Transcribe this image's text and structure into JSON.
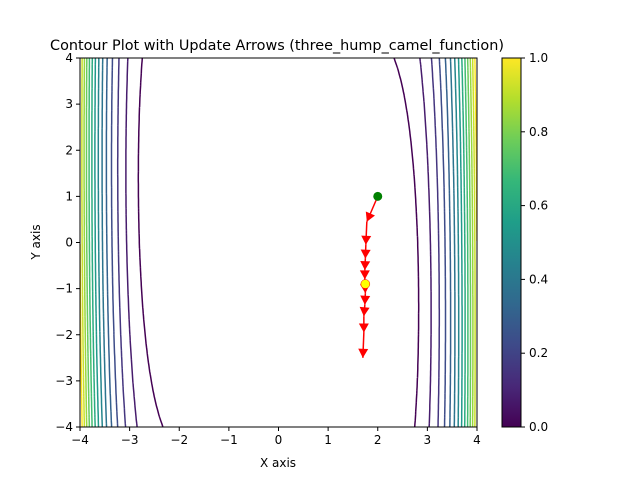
{
  "chart_data": {
    "type": "contour",
    "title": "Contour Plot with Update Arrows (three_hump_camel_function)",
    "xlabel": "X axis",
    "ylabel": "Y axis",
    "xlim": [
      -4,
      4
    ],
    "ylim": [
      -4,
      4
    ],
    "x_ticks": [
      "−4",
      "−3",
      "−2",
      "−1",
      "0",
      "1",
      "2",
      "3",
      "4"
    ],
    "y_ticks": [
      "−4",
      "−3",
      "−2",
      "−1",
      "0",
      "1",
      "2",
      "3",
      "4"
    ],
    "colormap": "viridis",
    "colorbar": {
      "range": [
        0,
        1
      ],
      "ticks": [
        "0.0",
        "0.2",
        "0.4",
        "0.6",
        "0.8",
        "1.0"
      ]
    },
    "contour_levels_count": 15,
    "start_point": {
      "x": 2.0,
      "y": 1.0,
      "color": "#008000"
    },
    "end_point": {
      "x": 1.75,
      "y": -0.9,
      "color": "#ffff00"
    },
    "update_path": {
      "color": "#ff0000",
      "points": [
        {
          "x": 2.0,
          "y": 1.0
        },
        {
          "x": 1.78,
          "y": 0.45
        },
        {
          "x": 1.76,
          "y": -0.05
        },
        {
          "x": 1.75,
          "y": -0.35
        },
        {
          "x": 1.74,
          "y": -0.6
        },
        {
          "x": 1.74,
          "y": -0.8
        },
        {
          "x": 1.75,
          "y": -1.1
        },
        {
          "x": 1.74,
          "y": -1.35
        },
        {
          "x": 1.72,
          "y": -1.6
        },
        {
          "x": 1.72,
          "y": -1.95
        },
        {
          "x": 1.7,
          "y": -2.5
        }
      ]
    }
  }
}
